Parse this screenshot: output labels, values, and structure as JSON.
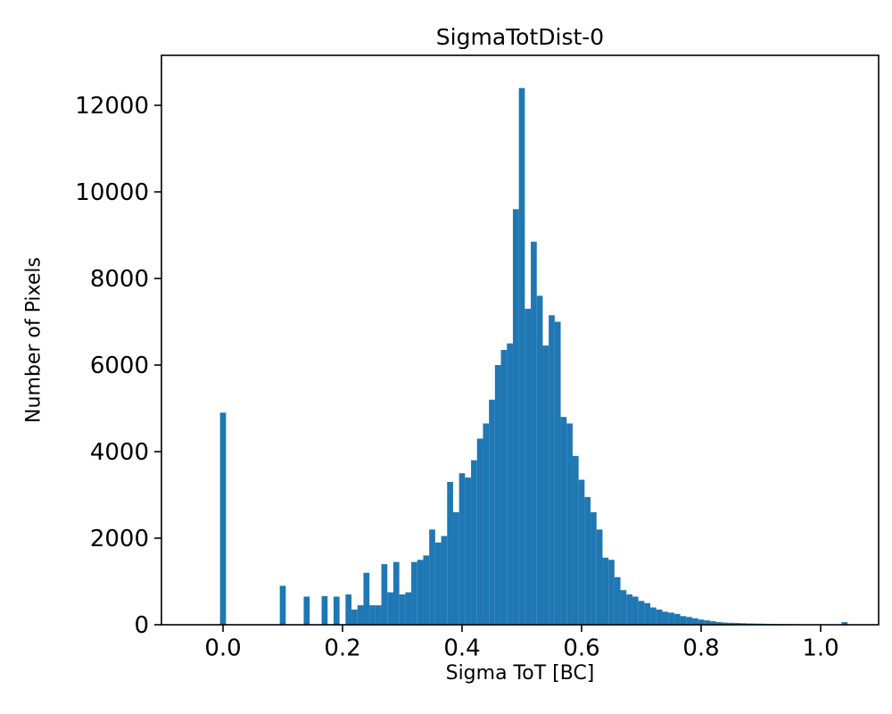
{
  "chart_data": {
    "type": "bar",
    "subtype": "histogram",
    "title": "SigmaTotDist-0",
    "xlabel": "Sigma ToT [BC]",
    "ylabel": "Number of Pixels",
    "bar_color": "#1f77b4",
    "axis_color": "#000000",
    "background_color": "#ffffff",
    "grid": false,
    "legend": "none",
    "bin_first_center": 0.0,
    "bin_step": 0.01,
    "bin_width": 0.01,
    "counts": [
      4900,
      0,
      0,
      0,
      0,
      0,
      0,
      0,
      0,
      0,
      900,
      0,
      0,
      0,
      650,
      0,
      0,
      660,
      0,
      650,
      0,
      700,
      350,
      450,
      1200,
      450,
      450,
      1400,
      750,
      1450,
      700,
      750,
      1450,
      1500,
      1600,
      2200,
      1900,
      2050,
      3300,
      2600,
      3500,
      3400,
      3800,
      4300,
      4650,
      5200,
      6000,
      6350,
      6500,
      9600,
      12400,
      7300,
      8850,
      7600,
      6450,
      7150,
      7000,
      4800,
      4650,
      3900,
      3350,
      2950,
      2600,
      2200,
      1550,
      1500,
      1100,
      800,
      700,
      650,
      550,
      500,
      400,
      350,
      300,
      280,
      250,
      200,
      180,
      150,
      120,
      100,
      80,
      60,
      50,
      45,
      40,
      35,
      30,
      28,
      25,
      22,
      20,
      18,
      15,
      14,
      12,
      10,
      10,
      8,
      8,
      6,
      5,
      5,
      60,
      5
    ],
    "x_ticks": [
      0.0,
      0.2,
      0.4,
      0.6,
      0.8,
      1.0
    ],
    "x_tick_labels": [
      "0.0",
      "0.2",
      "0.4",
      "0.6",
      "0.8",
      "1.0"
    ],
    "y_ticks": [
      0,
      2000,
      4000,
      6000,
      8000,
      10000,
      12000
    ],
    "y_tick_labels": [
      "0",
      "2000",
      "4000",
      "6000",
      "8000",
      "10000",
      "12000"
    ],
    "xlim": [
      -0.103,
      1.097
    ],
    "ylim": [
      0,
      13155
    ]
  }
}
